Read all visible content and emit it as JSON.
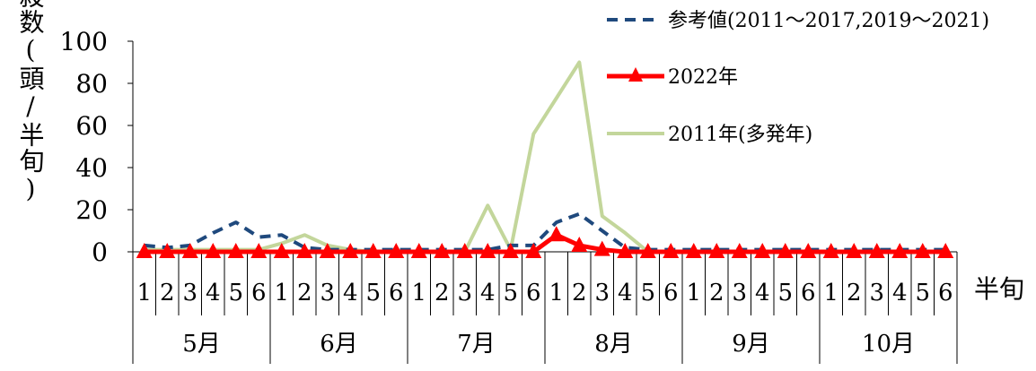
{
  "chart_data": {
    "type": "line",
    "ylabel": "誘殺数(頭/半旬)",
    "xlabel": "半旬",
    "ylim": [
      0,
      100
    ],
    "yticks": [
      0,
      20,
      40,
      60,
      80,
      100
    ],
    "grid": false,
    "legend_position": "top-right",
    "months": [
      "5月",
      "6月",
      "7月",
      "8月",
      "9月",
      "10月"
    ],
    "periods": [
      "1",
      "2",
      "3",
      "4",
      "5",
      "6"
    ],
    "series": [
      {
        "name": "参考値(2011～2017,2019～2021)",
        "style": "dashed",
        "color": "#1F497D",
        "values": [
          3,
          2,
          3,
          9,
          14,
          7,
          8,
          2,
          1,
          1,
          1,
          1,
          1,
          1,
          1,
          1,
          3,
          3,
          14,
          18,
          10,
          2,
          1,
          1,
          1,
          1,
          1,
          1,
          1,
          1,
          1,
          1,
          1,
          1,
          1,
          1
        ]
      },
      {
        "name": "2022年",
        "style": "solid-triangle-markers",
        "color": "#FF0000",
        "values": [
          0,
          0,
          0,
          0,
          0,
          0,
          0,
          0,
          0,
          0,
          0,
          0,
          0,
          0,
          0,
          0,
          0,
          0,
          8,
          3,
          1,
          0,
          0,
          0,
          0,
          0,
          0,
          0,
          0,
          0,
          0,
          0,
          0,
          0,
          0,
          0
        ]
      },
      {
        "name": "2011年(多発年)",
        "style": "solid",
        "color": "#C3D69B",
        "values": [
          1,
          1,
          1,
          1,
          1,
          1,
          4,
          8,
          3,
          1,
          0,
          0,
          0,
          0,
          0,
          22,
          1,
          56,
          73,
          90,
          17,
          9,
          0,
          0,
          0,
          0,
          0,
          0,
          0,
          0,
          0,
          0,
          0,
          0,
          0,
          0
        ]
      }
    ]
  }
}
